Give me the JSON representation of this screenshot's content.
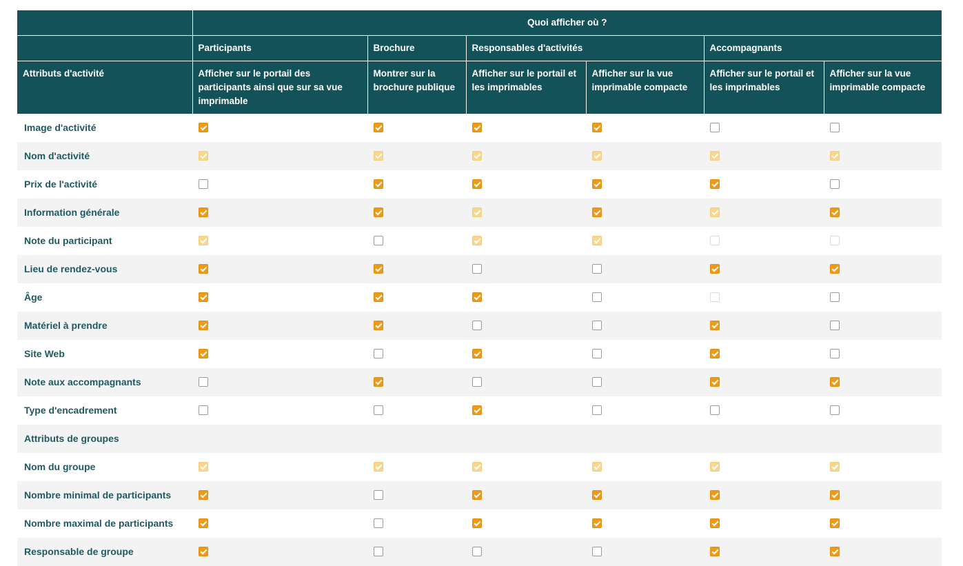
{
  "header": {
    "title": "Quoi afficher où ?",
    "groups": [
      "Participants",
      "Brochure",
      "Responsables d'activités",
      "Accompagnants"
    ],
    "row_label": "Attributs d'activité",
    "columns": [
      "Afficher sur le portail des participants ainsi que sur sa vue imprimable",
      "Montrer sur la brochure publique",
      "Afficher sur le portail et les imprimables",
      "Afficher sur la vue imprimable compacte",
      "Afficher sur le portail et les imprimables",
      "Afficher sur la vue imprimable compacte"
    ]
  },
  "rows": [
    {
      "label": "Image d'activité",
      "cells": [
        "on",
        "on",
        "on",
        "on",
        "off",
        "off"
      ]
    },
    {
      "label": "Nom d'activité",
      "cells": [
        "dim",
        "dim",
        "dim",
        "dim",
        "dim",
        "dim"
      ]
    },
    {
      "label": "Prix de l'activité",
      "cells": [
        "off",
        "on",
        "on",
        "on",
        "on",
        "off"
      ]
    },
    {
      "label": "Information générale",
      "cells": [
        "on",
        "on",
        "dim",
        "on",
        "dim",
        "on"
      ]
    },
    {
      "label": "Note du participant",
      "cells": [
        "dim",
        "off",
        "dim",
        "dim",
        "faint",
        "faint"
      ]
    },
    {
      "label": "Lieu de rendez-vous",
      "cells": [
        "on",
        "on",
        "off",
        "off",
        "on",
        "on"
      ]
    },
    {
      "label": "Âge",
      "cells": [
        "on",
        "on",
        "on",
        "off",
        "faint",
        "off"
      ]
    },
    {
      "label": "Matériel à prendre",
      "cells": [
        "on",
        "on",
        "off",
        "off",
        "on",
        "off"
      ]
    },
    {
      "label": "Site Web",
      "cells": [
        "on",
        "off",
        "on",
        "off",
        "on",
        "off"
      ]
    },
    {
      "label": "Note aux accompagnants",
      "cells": [
        "off",
        "on",
        "off",
        "off",
        "on",
        "on"
      ]
    },
    {
      "label": "Type d'encadrement",
      "cells": [
        "off",
        "off",
        "on",
        "off",
        "off",
        "off"
      ]
    },
    {
      "label": "Attributs de groupes",
      "cells": []
    },
    {
      "label": "Nom du groupe",
      "cells": [
        "dim",
        "dim",
        "dim",
        "dim",
        "dim",
        "dim"
      ]
    },
    {
      "label": "Nombre minimal de participants",
      "cells": [
        "on",
        "off",
        "on",
        "on",
        "on",
        "on"
      ]
    },
    {
      "label": "Nombre maximal de participants",
      "cells": [
        "on",
        "off",
        "on",
        "on",
        "on",
        "on"
      ]
    },
    {
      "label": "Responsable de groupe",
      "cells": [
        "on",
        "off",
        "off",
        "off",
        "on",
        "on"
      ]
    }
  ]
}
